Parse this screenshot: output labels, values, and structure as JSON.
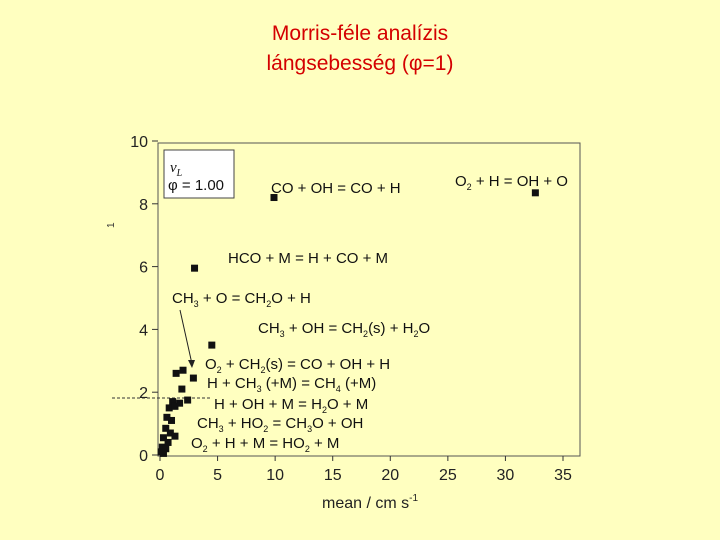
{
  "title_line1": "Morris-féle analízis",
  "title_line2": "lángsebesség (φ=1)",
  "chart_data": {
    "type": "scatter",
    "xlabel": "mean / cm s-1",
    "ylabel": "",
    "xlim": [
      0,
      37
    ],
    "ylim": [
      0,
      10
    ],
    "x_ticks": [
      "0",
      "5",
      "10",
      "15",
      "20",
      "25",
      "30",
      "35"
    ],
    "y_ticks": [
      "0",
      "2",
      "4",
      "6",
      "8",
      "10"
    ],
    "legend": {
      "line1": "vL",
      "line2": "φ = 1.00"
    },
    "points": [
      {
        "x": 32.6,
        "y": 8.35
      },
      {
        "x": 9.9,
        "y": 8.2
      },
      {
        "x": 3.0,
        "y": 5.95
      },
      {
        "x": 4.5,
        "y": 3.5
      },
      {
        "x": 1.4,
        "y": 2.6
      },
      {
        "x": 2.0,
        "y": 2.7
      },
      {
        "x": 2.9,
        "y": 2.45
      },
      {
        "x": 1.9,
        "y": 2.1
      },
      {
        "x": 1.1,
        "y": 1.7
      },
      {
        "x": 1.7,
        "y": 1.65
      },
      {
        "x": 2.4,
        "y": 1.75
      },
      {
        "x": 0.8,
        "y": 1.5
      },
      {
        "x": 1.3,
        "y": 1.55
      },
      {
        "x": 0.6,
        "y": 1.2
      },
      {
        "x": 1.0,
        "y": 1.1
      },
      {
        "x": 0.5,
        "y": 0.85
      },
      {
        "x": 0.9,
        "y": 0.7
      },
      {
        "x": 1.3,
        "y": 0.6
      },
      {
        "x": 0.3,
        "y": 0.55
      },
      {
        "x": 0.7,
        "y": 0.4
      },
      {
        "x": 0.2,
        "y": 0.25
      },
      {
        "x": 0.5,
        "y": 0.2
      },
      {
        "x": 0.1,
        "y": 0.1
      },
      {
        "x": 0.3,
        "y": 0.05
      }
    ],
    "annotations": [
      "CO + OH = CO + H",
      "O2 + H = OH + O",
      "HCO + M = H + CO + M",
      "CH3 + O = CH2O + H",
      "CH3 + OH = CH2(s) + H2O",
      "O2 + CH2(s) = CO + OH + H",
      "H + CH3 (+M) = CH4 (+M)",
      "H + OH + M = H2O + M",
      "CH3 + HO2 = CH3O + OH",
      "O2 + H + M = HO2 + M"
    ]
  }
}
